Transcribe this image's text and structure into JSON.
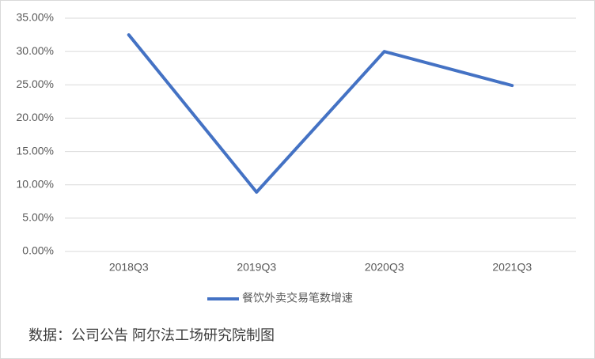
{
  "chart_data": {
    "type": "line",
    "categories": [
      "2018Q3",
      "2019Q3",
      "2020Q3",
      "2021Q3"
    ],
    "series": [
      {
        "name": "餐饮外卖交易笔数增速",
        "color": "#4472c4",
        "values": [
          32.5,
          8.9,
          30.0,
          24.9
        ]
      }
    ],
    "ylim": [
      0,
      35
    ],
    "yticks": [
      {
        "value": 0,
        "label": "0.00%"
      },
      {
        "value": 5,
        "label": "5.00%"
      },
      {
        "value": 10,
        "label": "10.00%"
      },
      {
        "value": 15,
        "label": "15.00%"
      },
      {
        "value": 20,
        "label": "20.00%"
      },
      {
        "value": 25,
        "label": "25.00%"
      },
      {
        "value": 30,
        "label": "30.00%"
      },
      {
        "value": 35,
        "label": "35.00%"
      }
    ],
    "grid": true,
    "legend": "bottom",
    "source": "数据：公司公告 阿尔法工场研究院制图"
  }
}
